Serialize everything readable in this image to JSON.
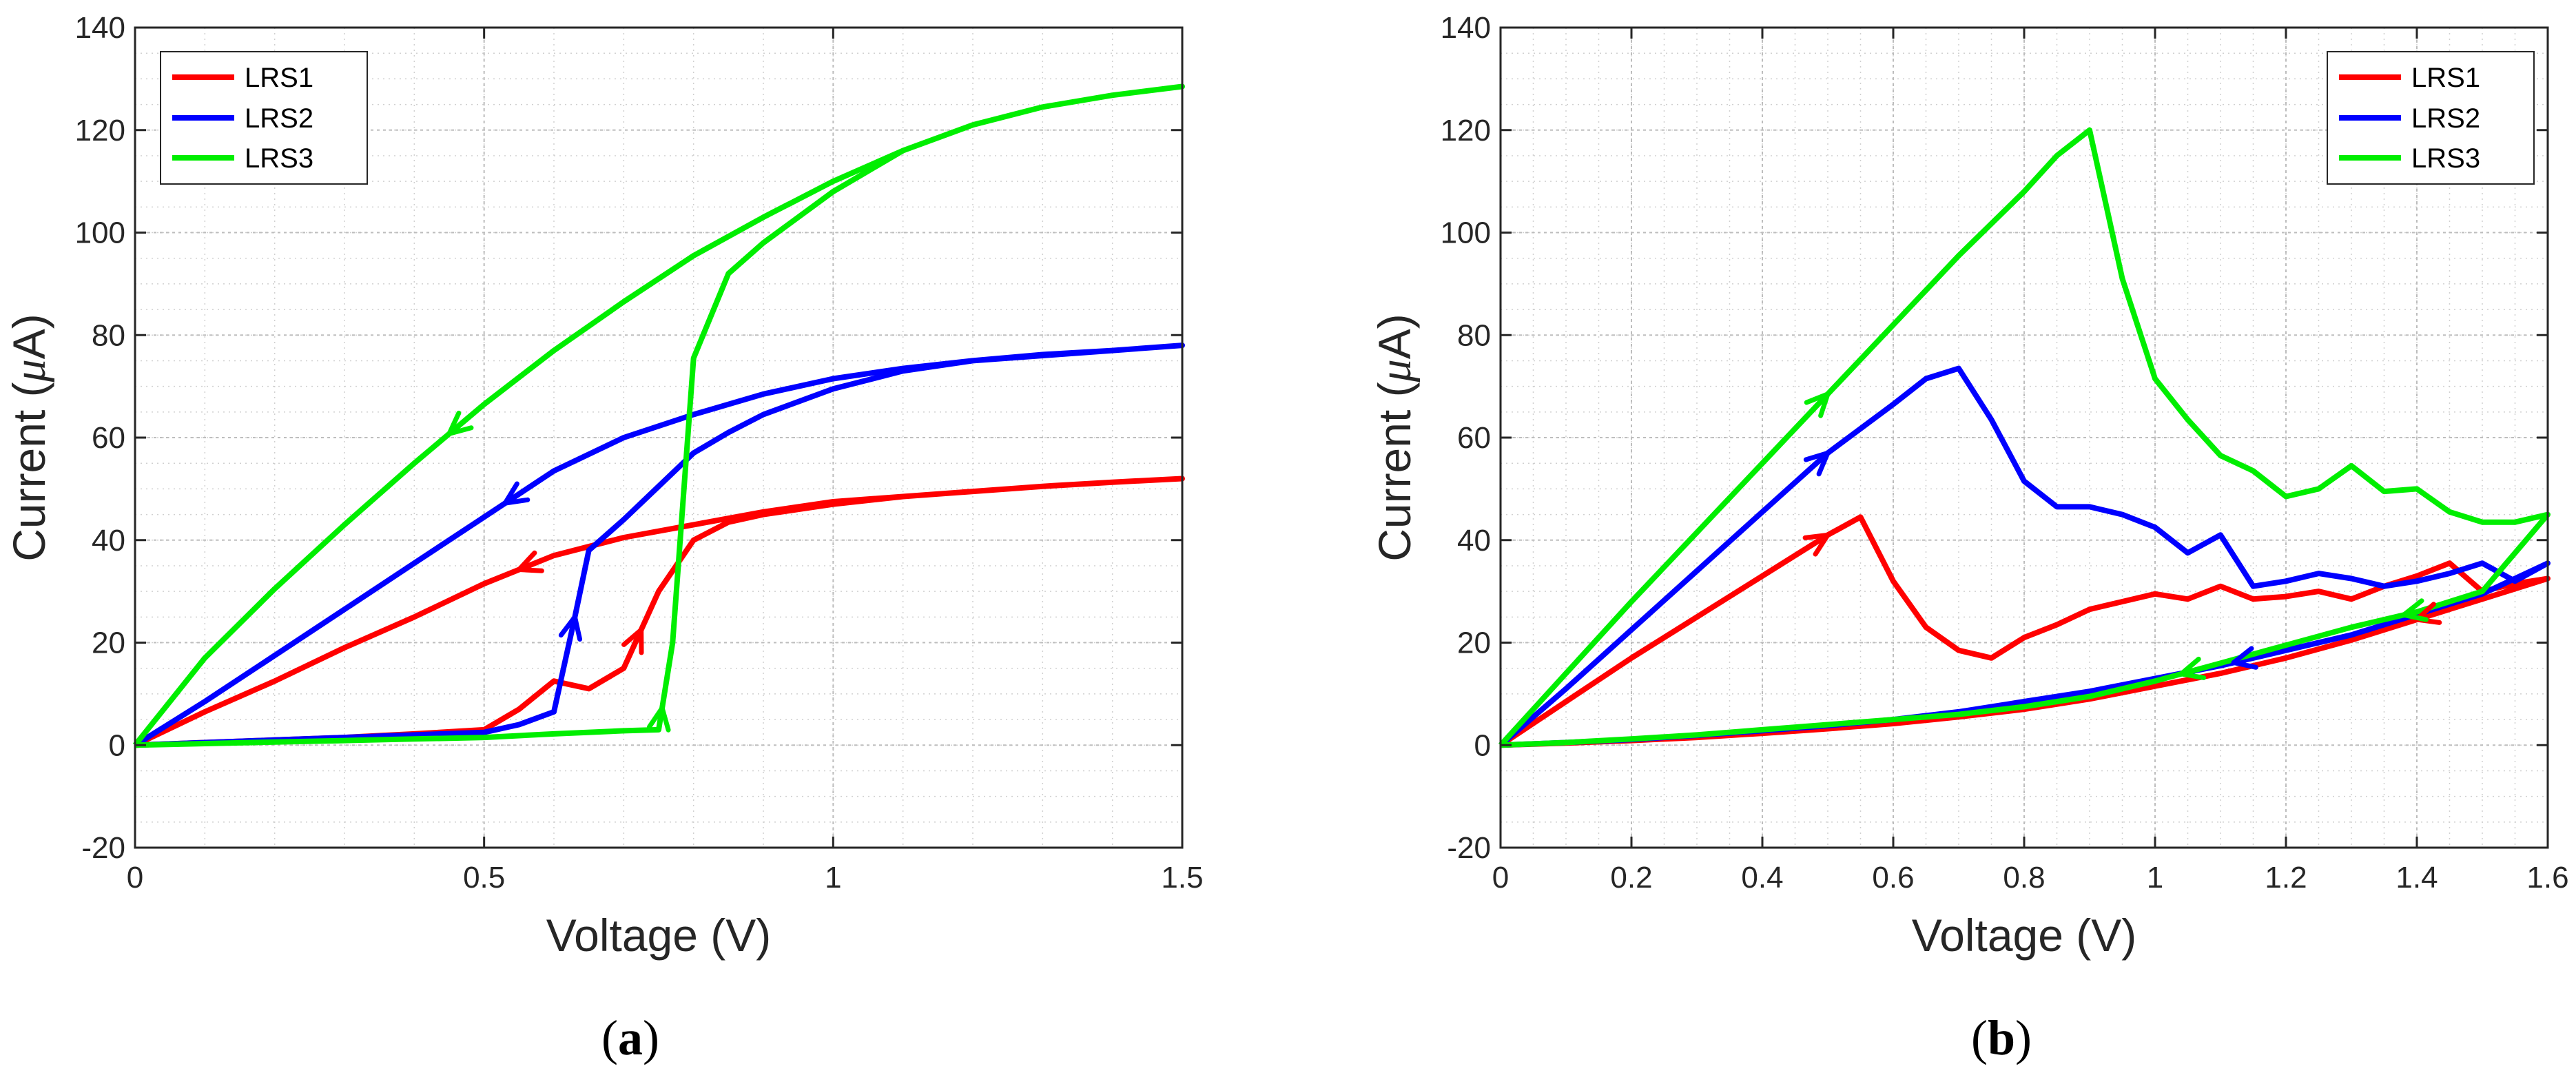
{
  "figure": {
    "panel_labels": [
      {
        "open": "(",
        "letter": "a",
        "close": ")"
      },
      {
        "open": "(",
        "letter": "b",
        "close": ")"
      }
    ]
  },
  "colors": {
    "LRS1": "#ff0000",
    "LRS2": "#0000ff",
    "LRS3": "#00ee00"
  },
  "chart_data": [
    {
      "type": "line",
      "panel": "a",
      "title": "",
      "xlabel": "Voltage (V)",
      "ylabel_prefix": "Current (",
      "ylabel_symbol": "μ",
      "ylabel_suffix": "A)",
      "xlim": [
        0,
        1.5
      ],
      "ylim": [
        -20,
        140
      ],
      "xticks": [
        0,
        0.5,
        1,
        1.5
      ],
      "xtick_labels": [
        "0",
        "0.5",
        "1",
        "1.5"
      ],
      "yticks": [
        -20,
        0,
        20,
        40,
        60,
        80,
        100,
        120,
        140
      ],
      "ytick_labels": [
        "-20",
        "0",
        "20",
        "40",
        "60",
        "80",
        "100",
        "120",
        "140"
      ],
      "grid": true,
      "legend_position": "top-left",
      "legend": [
        "LRS1",
        "LRS2",
        "LRS3"
      ],
      "series": [
        {
          "name": "LRS1",
          "x": [
            0,
            0.1,
            0.2,
            0.3,
            0.4,
            0.5,
            0.55,
            0.6,
            0.65,
            0.7,
            0.75,
            0.8,
            0.85,
            0.9,
            1.0,
            1.1,
            1.2,
            1.3,
            1.4,
            1.5,
            1.4,
            1.3,
            1.2,
            1.1,
            1.0,
            0.9,
            0.8,
            0.7,
            0.6,
            0.5,
            0.4,
            0.3,
            0.2,
            0.1,
            0
          ],
          "y": [
            0,
            0.5,
            1,
            1.5,
            2.2,
            3,
            7,
            12.5,
            11,
            15,
            30,
            40,
            43.5,
            45,
            47,
            48.5,
            49.5,
            50.5,
            51.3,
            52,
            51.3,
            50.5,
            49.5,
            48.5,
            47.5,
            45.5,
            43,
            40.5,
            37,
            31.5,
            25,
            19,
            12.5,
            6.5,
            0
          ],
          "arrows": [
            {
              "from": 0.7,
              "to": 0.725,
              "dir": "up"
            },
            {
              "from": 0.6,
              "to": 0.55,
              "dir": "left"
            }
          ]
        },
        {
          "name": "LRS2",
          "x": [
            0,
            0.1,
            0.2,
            0.3,
            0.4,
            0.5,
            0.55,
            0.6,
            0.63,
            0.65,
            0.7,
            0.75,
            0.8,
            0.85,
            0.9,
            1.0,
            1.1,
            1.2,
            1.3,
            1.4,
            1.5,
            1.4,
            1.3,
            1.2,
            1.1,
            1.0,
            0.9,
            0.8,
            0.7,
            0.6,
            0.5,
            0.4,
            0.3,
            0.2,
            0.1,
            0
          ],
          "y": [
            0,
            0.5,
            1,
            1.5,
            2,
            2.5,
            4,
            6.5,
            25,
            38,
            44,
            50.5,
            57,
            61,
            64.5,
            69.5,
            73,
            75,
            76.2,
            77,
            78,
            77,
            76,
            75,
            73.5,
            71.5,
            68.5,
            64.5,
            60,
            53.5,
            44.5,
            35.5,
            26.5,
            17.5,
            8.5,
            0
          ],
          "arrows": [
            {
              "from": 0.62,
              "to": 0.63,
              "dir": "up"
            },
            {
              "from": 0.58,
              "to": 0.53,
              "dir": "left"
            }
          ]
        },
        {
          "name": "LRS3",
          "x": [
            0,
            0.1,
            0.2,
            0.3,
            0.4,
            0.5,
            0.6,
            0.7,
            0.75,
            0.77,
            0.8,
            0.85,
            0.9,
            1.0,
            1.1,
            1.2,
            1.3,
            1.4,
            1.5,
            1.4,
            1.3,
            1.2,
            1.1,
            1.0,
            0.9,
            0.8,
            0.7,
            0.6,
            0.5,
            0.4,
            0.3,
            0.2,
            0.1,
            0
          ],
          "y": [
            0,
            0.3,
            0.6,
            0.9,
            1.2,
            1.5,
            2.2,
            2.8,
            3,
            20,
            75.5,
            92,
            98,
            108,
            116,
            121,
            124.5,
            126.8,
            128.5,
            126.8,
            124.5,
            121,
            116,
            110,
            103,
            95.5,
            86.5,
            77,
            66.5,
            55,
            43,
            30.5,
            17,
            0
          ],
          "arrows": [
            {
              "from": 0.75,
              "to": 0.755,
              "dir": "up"
            },
            {
              "from": 0.5,
              "to": 0.45,
              "dir": "left"
            }
          ]
        }
      ]
    },
    {
      "type": "line",
      "panel": "b",
      "title": "",
      "xlabel": "Voltage (V)",
      "ylabel_prefix": "Current (",
      "ylabel_symbol": "μ",
      "ylabel_suffix": "A)",
      "xlim": [
        0,
        1.6
      ],
      "ylim": [
        -20,
        140
      ],
      "xticks": [
        0,
        0.2,
        0.4,
        0.6,
        0.8,
        1.0,
        1.2,
        1.4,
        1.6
      ],
      "xtick_labels": [
        "0",
        "0.2",
        "0.4",
        "0.6",
        "0.8",
        "1",
        "1.2",
        "1.4",
        "1.6"
      ],
      "yticks": [
        -20,
        0,
        20,
        40,
        60,
        80,
        100,
        120,
        140
      ],
      "ytick_labels": [
        "-20",
        "0",
        "20",
        "40",
        "60",
        "80",
        "100",
        "120",
        "140"
      ],
      "grid": true,
      "legend_position": "top-right",
      "legend": [
        "LRS1",
        "LRS2",
        "LRS3"
      ],
      "series": [
        {
          "name": "LRS1",
          "x": [
            0,
            0.1,
            0.2,
            0.3,
            0.4,
            0.5,
            0.55,
            0.6,
            0.65,
            0.7,
            0.75,
            0.8,
            0.85,
            0.9,
            0.95,
            1.0,
            1.05,
            1.1,
            1.15,
            1.2,
            1.25,
            1.3,
            1.35,
            1.4,
            1.45,
            1.5,
            1.55,
            1.6,
            1.5,
            1.4,
            1.3,
            1.2,
            1.1,
            1.0,
            0.9,
            0.8,
            0.7,
            0.6,
            0.5,
            0.4,
            0.3,
            0.2,
            0.1,
            0
          ],
          "y": [
            0,
            8.5,
            17,
            25,
            33,
            41,
            44.5,
            32,
            23,
            18.5,
            17,
            21,
            23.5,
            26.5,
            28,
            29.5,
            28.5,
            31,
            28.5,
            29,
            30,
            28.5,
            31,
            33,
            35.5,
            30,
            31.5,
            32.5,
            28.5,
            24.5,
            20.5,
            17,
            14,
            11.5,
            9,
            7,
            5.5,
            4.2,
            3.2,
            2.3,
            1.5,
            0.9,
            0.4,
            0
          ],
          "arrows": [
            {
              "from": 0.45,
              "to": 0.5,
              "dir": "right"
            },
            {
              "from": 1.45,
              "to": 1.4,
              "dir": "left"
            }
          ]
        },
        {
          "name": "LRS2",
          "x": [
            0,
            0.1,
            0.2,
            0.3,
            0.4,
            0.5,
            0.6,
            0.65,
            0.7,
            0.75,
            0.8,
            0.85,
            0.9,
            0.95,
            1.0,
            1.05,
            1.1,
            1.15,
            1.2,
            1.25,
            1.3,
            1.35,
            1.4,
            1.45,
            1.5,
            1.55,
            1.6,
            1.5,
            1.4,
            1.3,
            1.2,
            1.1,
            1.0,
            0.9,
            0.8,
            0.7,
            0.6,
            0.5,
            0.4,
            0.3,
            0.2,
            0.1,
            0
          ],
          "y": [
            0,
            11,
            22.5,
            34,
            45.5,
            57,
            66.5,
            71.5,
            73.5,
            63.5,
            51.5,
            46.5,
            46.5,
            45,
            42.5,
            37.5,
            41,
            31,
            32,
            33.5,
            32.5,
            31,
            32,
            33.5,
            35.5,
            32,
            35.5,
            29.5,
            25.5,
            21.5,
            18.5,
            15.5,
            13,
            10.5,
            8.5,
            6.5,
            5,
            3.8,
            2.8,
            1.9,
            1.1,
            0.5,
            0
          ],
          "arrows": [
            {
              "from": 0.45,
              "to": 0.5,
              "dir": "right"
            },
            {
              "from": 1.17,
              "to": 1.12,
              "dir": "left"
            }
          ]
        },
        {
          "name": "LRS3",
          "x": [
            0,
            0.1,
            0.2,
            0.3,
            0.4,
            0.5,
            0.6,
            0.7,
            0.8,
            0.85,
            0.9,
            0.95,
            1.0,
            1.05,
            1.1,
            1.15,
            1.2,
            1.25,
            1.3,
            1.35,
            1.4,
            1.45,
            1.5,
            1.55,
            1.6,
            1.5,
            1.4,
            1.3,
            1.2,
            1.1,
            1.0,
            0.9,
            0.8,
            0.7,
            0.6,
            0.5,
            0.4,
            0.3,
            0.2,
            0.1,
            0
          ],
          "y": [
            0,
            14,
            28,
            41.5,
            55,
            68.5,
            82,
            95.5,
            108,
            115,
            120,
            91,
            71.5,
            63.5,
            56.5,
            53.5,
            48.5,
            50,
            54.5,
            49.5,
            50,
            45.5,
            43.5,
            43.5,
            45,
            30,
            26,
            23,
            19.5,
            16,
            12.5,
            9.5,
            7.5,
            6,
            5,
            4,
            3,
            2,
            1.2,
            0.5,
            0
          ],
          "arrows": [
            {
              "from": 0.45,
              "to": 0.5,
              "dir": "right"
            },
            {
              "from": 1.09,
              "to": 1.04,
              "dir": "left"
            },
            {
              "from": 1.43,
              "to": 1.38,
              "dir": "left"
            }
          ]
        }
      ]
    }
  ]
}
